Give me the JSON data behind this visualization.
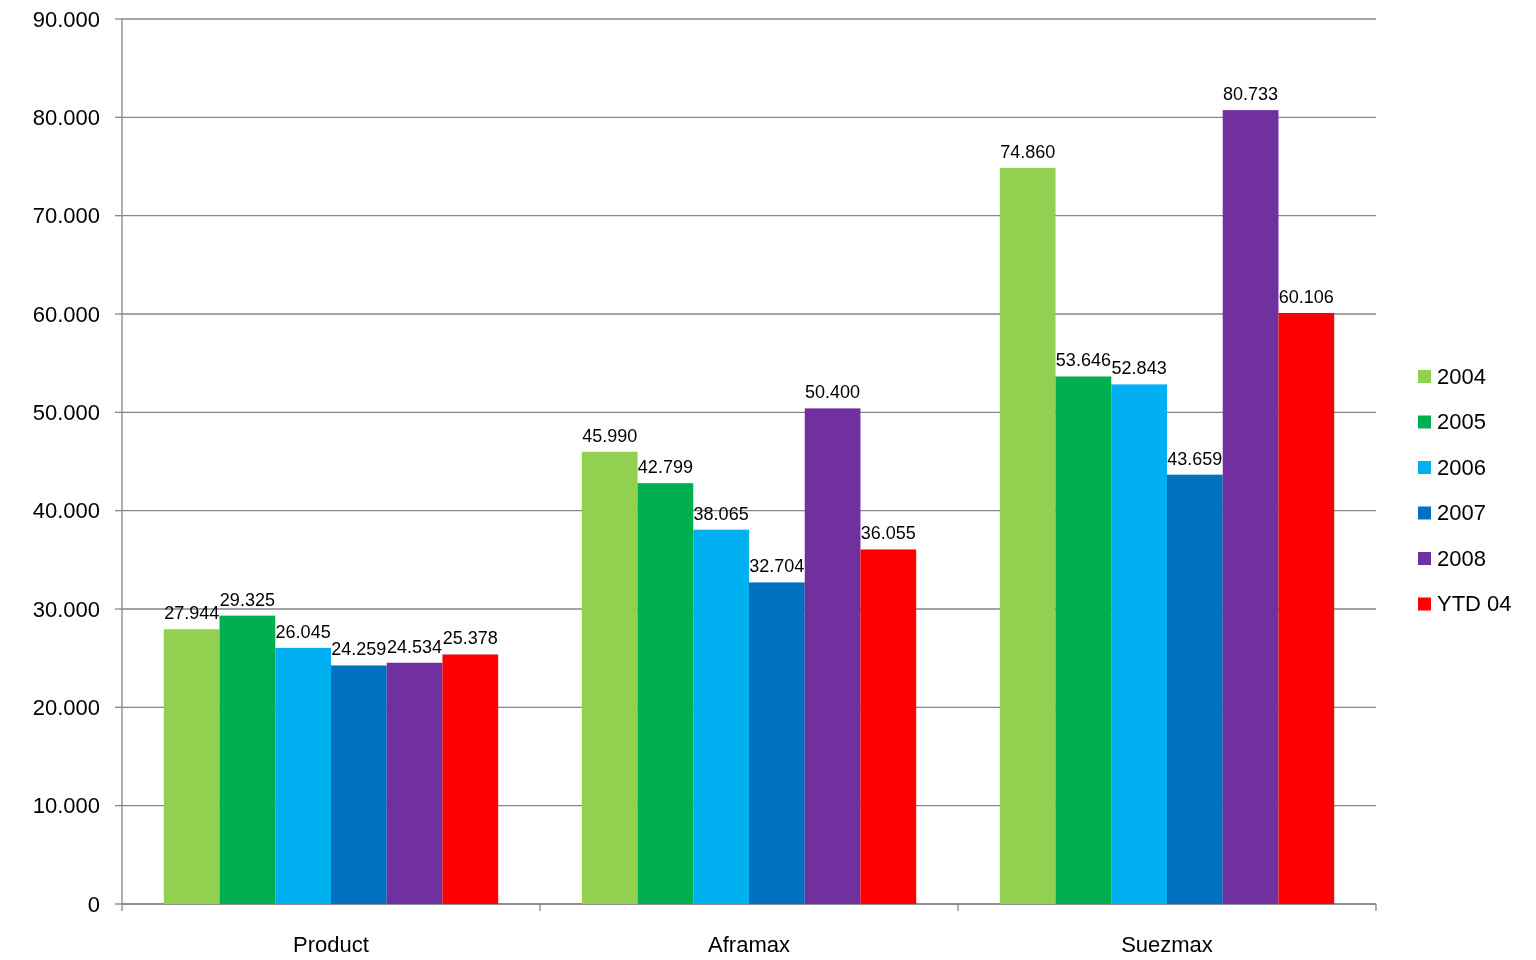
{
  "chart_data": {
    "type": "bar",
    "categories": [
      "Product",
      "Aframax",
      "Suezmax"
    ],
    "series": [
      {
        "name": "2004",
        "color": "#92d050",
        "values": [
          27944,
          45990,
          74860
        ],
        "value_labels": [
          "27.944",
          "45.990",
          "74.860"
        ]
      },
      {
        "name": "2005",
        "color": "#00b050",
        "values": [
          29325,
          42799,
          53646
        ],
        "value_labels": [
          "29.325",
          "42.799",
          "53.646"
        ]
      },
      {
        "name": "2006",
        "color": "#00b0f0",
        "values": [
          26045,
          38065,
          52843
        ],
        "value_labels": [
          "26.045",
          "38.065",
          "52.843"
        ]
      },
      {
        "name": "2007",
        "color": "#0070c0",
        "values": [
          24259,
          32704,
          43659
        ],
        "value_labels": [
          "24.259",
          "32.704",
          "43.659"
        ]
      },
      {
        "name": "2008",
        "color": "#7030a0",
        "values": [
          24534,
          50400,
          80733
        ],
        "value_labels": [
          "24.534",
          "50.400",
          "80.733"
        ]
      },
      {
        "name": "YTD 04",
        "color": "#ff0000",
        "values": [
          25378,
          36055,
          60106
        ],
        "value_labels": [
          "25.378",
          "36.055",
          "60.106"
        ]
      }
    ],
    "ylim": [
      0,
      90000
    ],
    "yticks": [
      0,
      {
        "value": 10000,
        "label": "10.000"
      },
      {
        "value": 20000,
        "label": "20.000"
      },
      {
        "value": 30000,
        "label": "30.000"
      },
      {
        "value": 40000,
        "label": "40.000"
      },
      {
        "value": 50000,
        "label": "50.000"
      },
      {
        "value": 60000,
        "label": "60.000"
      },
      {
        "value": 70000,
        "label": "70.000"
      },
      {
        "value": 80000,
        "label": "80.000"
      },
      {
        "value": 90000,
        "label": "90.000"
      }
    ],
    "grid": "y",
    "legend": "right"
  }
}
